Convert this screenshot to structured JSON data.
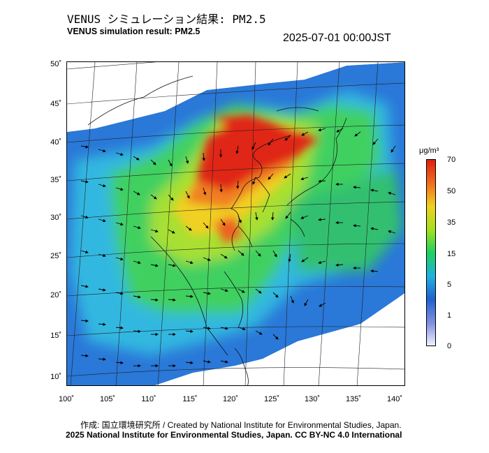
{
  "header": {
    "title_ja": "VENUS シミュレーション結果: PM2.5",
    "title_en": "VENUS simulation result: PM2.5",
    "timestamp": "2025-07-01 00:00JST"
  },
  "map": {
    "lat_labels": [
      "50˚",
      "45˚",
      "40˚",
      "35˚",
      "30˚",
      "25˚",
      "20˚",
      "15˚",
      "10˚"
    ],
    "lon_labels": [
      "100˚",
      "105˚",
      "110˚",
      "115˚",
      "120˚",
      "125˚",
      "130˚",
      "135˚",
      "140˚"
    ],
    "variable": "PM2.5",
    "overlay": "wind-vector-arrows"
  },
  "colorbar": {
    "unit": "μg/m³",
    "ticks": [
      "70",
      "50",
      "35",
      "15",
      "5",
      "1",
      "0"
    ],
    "colors": [
      "#e02010",
      "#f07020",
      "#f0d020",
      "#a0e020",
      "#20d060",
      "#20b0e0",
      "#2060d0",
      "#8090e0",
      "#f0f0ff"
    ]
  },
  "footer": {
    "credit_line1": "作成: 国立環境研究所 / Created by National Institute for Environmental Studies, Japan.",
    "credit_line2": "2025 National Institute for Environmental Studies, Japan. CC BY-NC 4.0 International"
  }
}
